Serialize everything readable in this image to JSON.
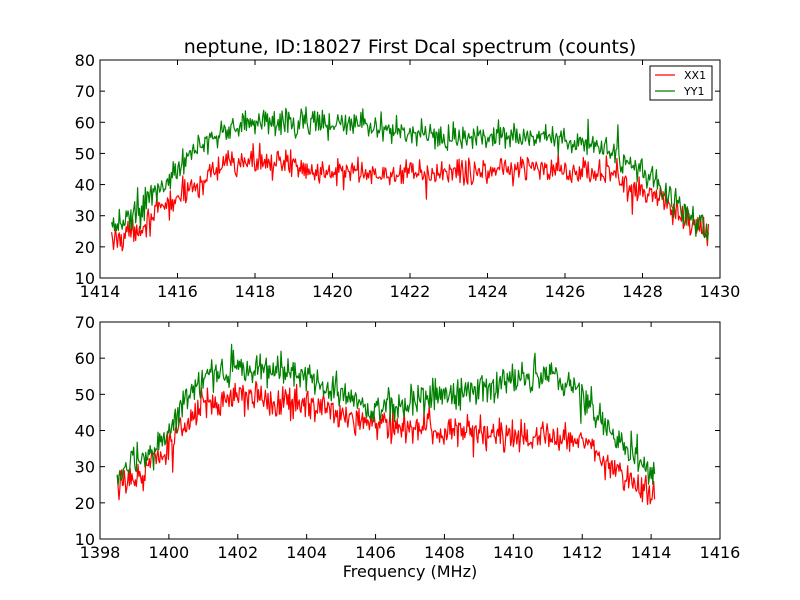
{
  "chart_data": [
    {
      "type": "line",
      "title": "neptune, ID:18027 First Dcal spectrum (counts)",
      "xlabel": "",
      "ylabel": "",
      "xlim": [
        1414,
        1430
      ],
      "ylim": [
        10,
        80
      ],
      "xticks": [
        "1414",
        "1416",
        "1418",
        "1420",
        "1422",
        "1424",
        "1426",
        "1428",
        "1430"
      ],
      "yticks": [
        "10",
        "20",
        "30",
        "40",
        "50",
        "60",
        "70",
        "80"
      ],
      "legend": {
        "placement": "top-right",
        "entries": [
          "XX1",
          "YY1"
        ]
      },
      "grid": false,
      "x_data_range": [
        1414.3,
        1429.7
      ],
      "series": [
        {
          "name": "XX1",
          "color": "#ff0000",
          "noise_amplitude": 4,
          "envelope": [
            [
              1414.3,
              22
            ],
            [
              1415.0,
              26
            ],
            [
              1415.8,
              34
            ],
            [
              1416.5,
              40
            ],
            [
              1417.2,
              46
            ],
            [
              1418.0,
              48
            ],
            [
              1419.0,
              46
            ],
            [
              1420.0,
              44
            ],
            [
              1421.0,
              43
            ],
            [
              1422.0,
              43
            ],
            [
              1423.0,
              44
            ],
            [
              1424.0,
              45
            ],
            [
              1425.0,
              45
            ],
            [
              1426.0,
              45
            ],
            [
              1427.0,
              44
            ],
            [
              1428.0,
              38
            ],
            [
              1428.6,
              35
            ],
            [
              1429.0,
              30
            ],
            [
              1429.7,
              24
            ]
          ]
        },
        {
          "name": "YY1",
          "color": "#008000",
          "noise_amplitude": 4,
          "envelope": [
            [
              1414.3,
              25
            ],
            [
              1415.0,
              32
            ],
            [
              1415.8,
              42
            ],
            [
              1416.5,
              52
            ],
            [
              1417.2,
              58
            ],
            [
              1418.0,
              60
            ],
            [
              1419.0,
              60
            ],
            [
              1420.0,
              60
            ],
            [
              1421.0,
              58
            ],
            [
              1422.0,
              57
            ],
            [
              1423.0,
              55
            ],
            [
              1424.0,
              56
            ],
            [
              1425.0,
              56
            ],
            [
              1426.0,
              55
            ],
            [
              1427.0,
              52
            ],
            [
              1428.0,
              44
            ],
            [
              1428.6,
              38
            ],
            [
              1429.0,
              32
            ],
            [
              1429.7,
              26
            ]
          ]
        }
      ]
    },
    {
      "type": "line",
      "title": "",
      "xlabel": "Frequency (MHz)",
      "ylabel": "",
      "xlim": [
        1398,
        1416
      ],
      "ylim": [
        10,
        70
      ],
      "xticks": [
        "1398",
        "1400",
        "1402",
        "1404",
        "1406",
        "1408",
        "1410",
        "1412",
        "1414",
        "1416"
      ],
      "yticks": [
        "10",
        "20",
        "30",
        "40",
        "50",
        "60",
        "70"
      ],
      "legend": null,
      "grid": false,
      "x_data_range": [
        1398.5,
        1414.1
      ],
      "series": [
        {
          "color": "#ff0000",
          "noise_amplitude": 4,
          "envelope": [
            [
              1398.5,
              24
            ],
            [
              1399.0,
              27
            ],
            [
              1399.5,
              31
            ],
            [
              1400.0,
              36
            ],
            [
              1400.5,
              42
            ],
            [
              1401.0,
              47
            ],
            [
              1402.0,
              50
            ],
            [
              1403.0,
              49
            ],
            [
              1404.0,
              47
            ],
            [
              1405.0,
              45
            ],
            [
              1406.0,
              42
            ],
            [
              1407.0,
              41
            ],
            [
              1408.0,
              40
            ],
            [
              1409.0,
              39
            ],
            [
              1410.0,
              38
            ],
            [
              1411.0,
              38
            ],
            [
              1412.0,
              37
            ],
            [
              1412.5,
              33
            ],
            [
              1413.0,
              28
            ],
            [
              1413.5,
              25
            ],
            [
              1414.1,
              23
            ]
          ]
        },
        {
          "color": "#008000",
          "noise_amplitude": 4,
          "envelope": [
            [
              1398.5,
              28
            ],
            [
              1399.0,
              31
            ],
            [
              1399.5,
              34
            ],
            [
              1400.0,
              40
            ],
            [
              1400.5,
              48
            ],
            [
              1401.0,
              55
            ],
            [
              1402.0,
              57
            ],
            [
              1403.0,
              57
            ],
            [
              1404.0,
              55
            ],
            [
              1405.0,
              50
            ],
            [
              1406.0,
              46
            ],
            [
              1407.0,
              48
            ],
            [
              1408.0,
              50
            ],
            [
              1409.0,
              52
            ],
            [
              1410.0,
              54
            ],
            [
              1411.0,
              56
            ],
            [
              1412.0,
              51
            ],
            [
              1412.5,
              43
            ],
            [
              1413.0,
              37
            ],
            [
              1413.5,
              32
            ],
            [
              1414.1,
              27
            ]
          ]
        }
      ]
    }
  ]
}
